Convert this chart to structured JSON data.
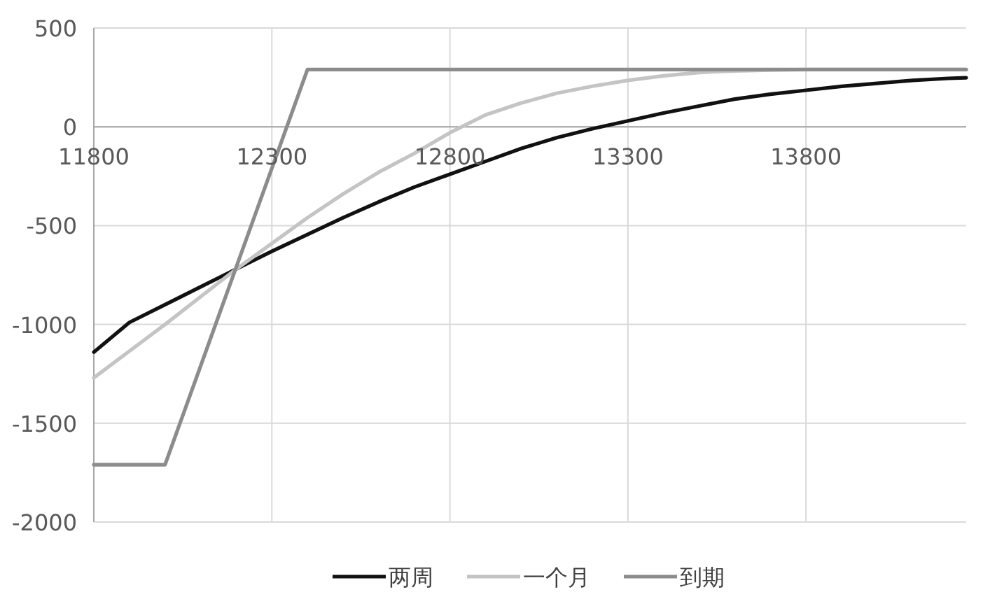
{
  "chart_data": {
    "type": "line",
    "xlim": [
      11800,
      14250
    ],
    "ylim": [
      -2000,
      500
    ],
    "xticks": [
      11800,
      12300,
      12800,
      13300,
      13800
    ],
    "yticks": [
      -2000,
      -1500,
      -1000,
      -500,
      0,
      500
    ],
    "grid": true,
    "legend": "bottom",
    "series": [
      {
        "name": "两周",
        "color": "#111111",
        "x": [
          11800,
          11900,
          12000,
          12100,
          12200,
          12300,
          12400,
          12500,
          12600,
          12700,
          12800,
          12900,
          13000,
          13100,
          13200,
          13300,
          13400,
          13500,
          13600,
          13700,
          13800,
          13900,
          14000,
          14100,
          14200,
          14250
        ],
        "values": [
          -1140,
          -990,
          -900,
          -810,
          -720,
          -630,
          -545,
          -460,
          -380,
          -305,
          -240,
          -175,
          -110,
          -55,
          -10,
          30,
          70,
          105,
          140,
          165,
          185,
          205,
          220,
          235,
          245,
          248
        ]
      },
      {
        "name": "一个月",
        "color": "#c4c4c4",
        "x": [
          11800,
          11900,
          12000,
          12100,
          12200,
          12300,
          12400,
          12500,
          12600,
          12700,
          12800,
          12900,
          13000,
          13100,
          13200,
          13300,
          13400,
          13500,
          13600,
          13700,
          13800,
          14250
        ],
        "values": [
          -1270,
          -1135,
          -1000,
          -860,
          -720,
          -590,
          -460,
          -340,
          -230,
          -135,
          -30,
          60,
          120,
          170,
          205,
          235,
          258,
          275,
          283,
          287,
          290,
          290
        ]
      },
      {
        "name": "到期",
        "color": "#8c8c8c",
        "x": [
          11800,
          12000,
          12400,
          14250
        ],
        "values": [
          -1710,
          -1710,
          290,
          290
        ]
      }
    ]
  }
}
